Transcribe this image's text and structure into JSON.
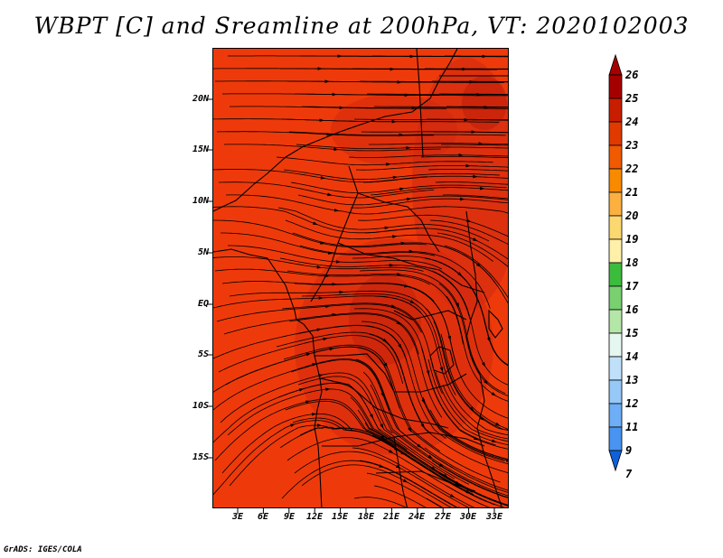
{
  "title": "WBPT [C] and Sreamline at 200hPa, VT: 2020102003",
  "credit": "GrADS: IGES/COLA",
  "map": {
    "lat_labels": [
      "20N",
      "15N",
      "10N",
      "5N",
      "EQ",
      "5S",
      "10S",
      "15S"
    ],
    "lon_labels": [
      "3E",
      "6E",
      "9E",
      "12E",
      "15E",
      "18E",
      "21E",
      "24E",
      "27E",
      "30E",
      "33E"
    ],
    "field_color": "#ee3a0a",
    "field_color_warm": "#d42810",
    "field_color_hot": "#c01e0a"
  },
  "colorbar": {
    "levels": [
      "26",
      "25",
      "24",
      "23",
      "22",
      "21",
      "20",
      "19",
      "18",
      "17",
      "16",
      "15",
      "14",
      "13",
      "12",
      "11",
      "9",
      "7"
    ],
    "colors": [
      "#a50000",
      "#c81e00",
      "#e03a00",
      "#f05a00",
      "#f88a00",
      "#fcb040",
      "#fcd870",
      "#fef0a8",
      "#3cbc3c",
      "#78d070",
      "#b4e6a8",
      "#e6f6f0",
      "#c0e0fa",
      "#96c8f8",
      "#6eaef6",
      "#4894f0",
      "#2a78e8",
      "#1060d8"
    ]
  }
}
